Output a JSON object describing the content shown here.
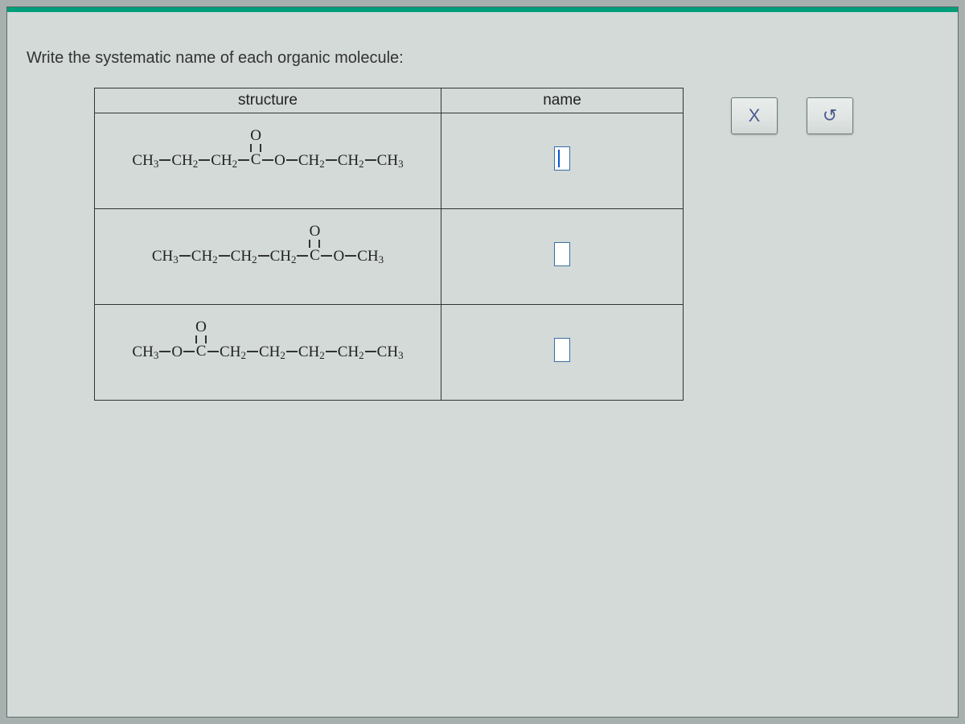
{
  "question": "Write the systematic name of each organic molecule:",
  "table": {
    "headers": {
      "structure": "structure",
      "name": "name"
    },
    "rows": [
      {
        "structure_pre": "CH₃ — CH₂ — CH₂ —",
        "structure_post": "— O — CH₂ — CH₂ — CH₃",
        "has_cursor": true
      },
      {
        "structure_pre": "CH₃ — CH₂ — CH₂ — CH₂ —",
        "structure_post": "— O — CH₃",
        "has_cursor": false
      },
      {
        "structure_pre": "CH₃ — O —",
        "structure_post": "— CH₂ — CH₂ — CH₂ — CH₂ — CH₃",
        "has_cursor": false
      }
    ]
  },
  "buttons": {
    "close": "X",
    "undo": "↺"
  },
  "colors": {
    "accent": "#009e7a",
    "panel_bg": "#d3dad8",
    "border": "#333333",
    "button_text": "#4a5a90",
    "input_border": "#3a6ea5"
  }
}
